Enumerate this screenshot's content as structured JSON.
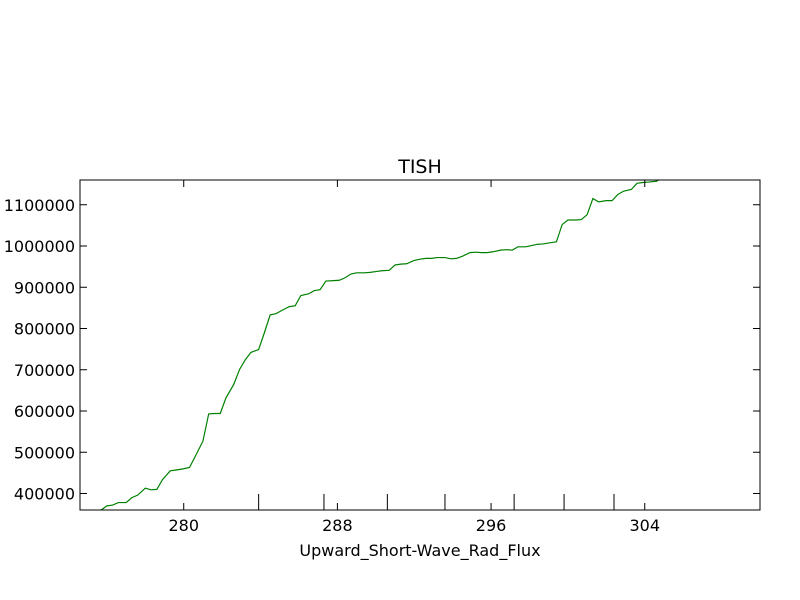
{
  "chart_data": {
    "type": "line",
    "title": "TISH",
    "xlabel": "Upward_Short-Wave_Rad_Flux",
    "ylabel": "",
    "xlim": [
      274.6,
      310.0
    ],
    "ylim": [
      360000,
      1160000
    ],
    "x_ticks": [
      280,
      288,
      296,
      304
    ],
    "x_tick_labels": [
      "280",
      "288",
      "296",
      "304"
    ],
    "x_minor_ticks": [
      283.9,
      287.3,
      290.6,
      293.6,
      297.2,
      299.8,
      302.4
    ],
    "y_ticks": [
      400000,
      500000,
      600000,
      700000,
      800000,
      900000,
      1000000,
      1100000
    ],
    "y_tick_labels": [
      "400000",
      "500000",
      "600000",
      "700000",
      "800000",
      "900000",
      "1000000",
      "1100000"
    ],
    "grid": false,
    "series": [
      {
        "color": "#008000",
        "x": [
          275.7,
          276.0,
          276.3,
          276.6,
          277.0,
          277.3,
          277.6,
          278.0,
          278.3,
          278.6,
          278.9,
          279.3,
          279.6,
          280.0,
          280.3,
          280.6,
          281.0,
          281.3,
          281.6,
          281.9,
          282.2,
          282.6,
          282.9,
          283.2,
          283.5,
          283.9,
          284.2,
          284.5,
          284.8,
          285.2,
          285.5,
          285.8,
          286.1,
          286.5,
          286.8,
          287.1,
          287.4,
          287.8,
          288.1,
          288.4,
          288.7,
          289.0,
          289.4,
          289.7,
          290.0,
          290.3,
          290.7,
          291.0,
          291.3,
          291.6,
          292.0,
          292.3,
          292.6,
          292.9,
          293.2,
          293.6,
          293.9,
          294.2,
          294.5,
          294.9,
          295.2,
          295.5,
          295.8,
          296.1,
          296.5,
          296.8,
          297.1,
          297.4,
          297.8,
          298.1,
          298.4,
          298.7,
          299.1,
          299.4,
          299.7,
          300.0,
          300.4,
          300.7,
          301.0,
          301.3,
          301.6,
          302.0,
          302.3,
          302.6,
          302.9,
          303.3,
          303.6,
          303.9,
          304.2,
          304.6,
          304.9,
          305.2,
          305.5
        ],
        "y": [
          360000,
          370000,
          372000,
          378000,
          378000,
          390000,
          396000,
          413000,
          409000,
          410000,
          434000,
          455000,
          457000,
          460000,
          463000,
          490000,
          527000,
          593000,
          594000,
          594000,
          632000,
          664000,
          700000,
          724000,
          742000,
          749000,
          790000,
          833000,
          836000,
          846000,
          853000,
          855000,
          880000,
          884000,
          892000,
          894000,
          915000,
          916000,
          917000,
          923000,
          932000,
          935000,
          935000,
          936000,
          938000,
          940000,
          941000,
          954000,
          956000,
          957000,
          965000,
          968000,
          970000,
          970000,
          972000,
          972000,
          969000,
          970000,
          975000,
          984000,
          985000,
          984000,
          984000,
          986000,
          990000,
          991000,
          990000,
          998000,
          998000,
          1001000,
          1004000,
          1005000,
          1008000,
          1010000,
          1052000,
          1063000,
          1063000,
          1064000,
          1076000,
          1115000,
          1107000,
          1110000,
          1110000,
          1125000,
          1133000,
          1137000,
          1152000,
          1154000,
          1155000,
          1157000,
          1165000,
          1175000,
          1182000
        ]
      }
    ]
  }
}
